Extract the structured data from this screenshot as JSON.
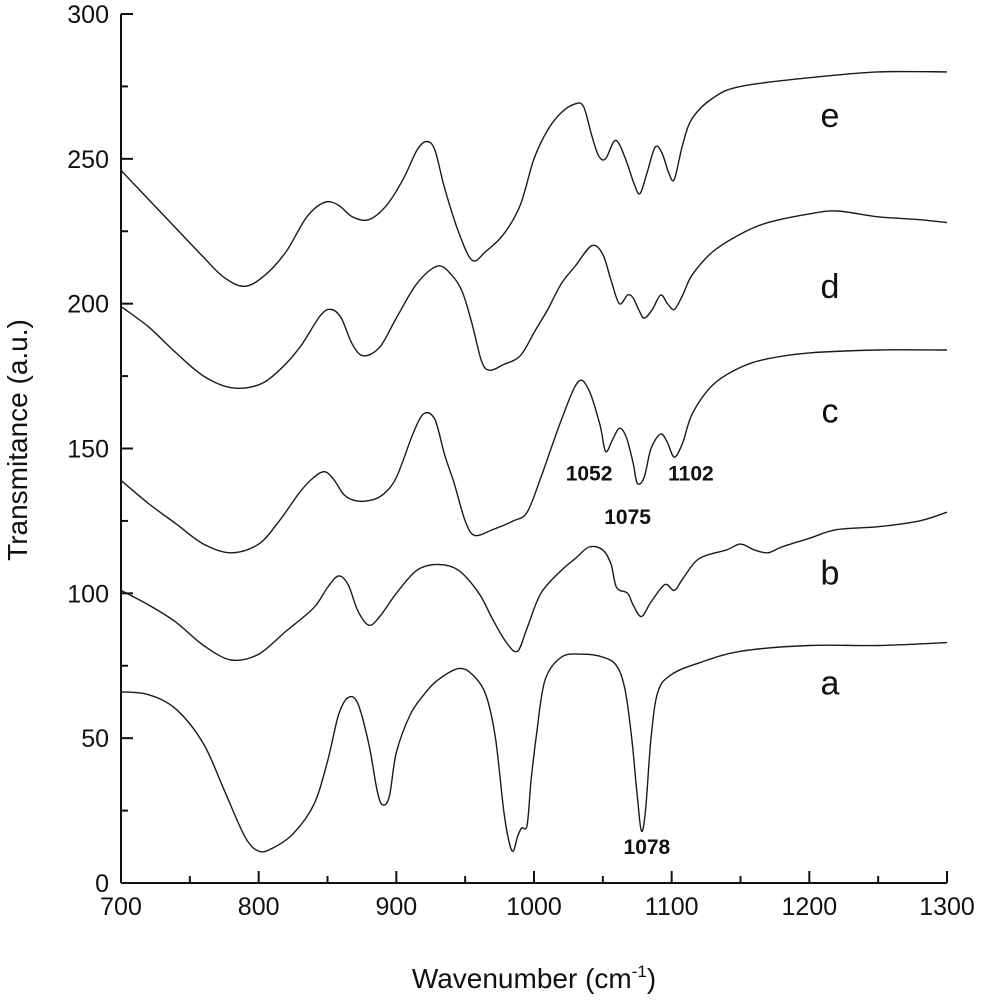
{
  "chart_data": {
    "type": "line",
    "title": "",
    "xlabel": "Wavenumber (cm⁻¹)",
    "xlabel_main": "Wavenumber (cm",
    "xlabel_sup": "-1",
    "xlabel_close": ")",
    "ylabel": "Transmitance (a.u.)",
    "xlim": [
      700,
      1300
    ],
    "ylim": [
      0,
      300
    ],
    "xticks": [
      700,
      800,
      900,
      1000,
      1100,
      1200,
      1300
    ],
    "yticks": [
      0,
      50,
      100,
      150,
      200,
      250,
      300
    ],
    "series": [
      {
        "name": "a",
        "points": [
          [
            700,
            66
          ],
          [
            720,
            65
          ],
          [
            740,
            60
          ],
          [
            760,
            48
          ],
          [
            775,
            32
          ],
          [
            790,
            16
          ],
          [
            800,
            11
          ],
          [
            810,
            12
          ],
          [
            825,
            17
          ],
          [
            840,
            27
          ],
          [
            850,
            42
          ],
          [
            858,
            58
          ],
          [
            865,
            64
          ],
          [
            872,
            62
          ],
          [
            880,
            48
          ],
          [
            886,
            32
          ],
          [
            890,
            27
          ],
          [
            895,
            30
          ],
          [
            900,
            45
          ],
          [
            910,
            58
          ],
          [
            920,
            65
          ],
          [
            930,
            70
          ],
          [
            945,
            74
          ],
          [
            955,
            72
          ],
          [
            965,
            65
          ],
          [
            972,
            50
          ],
          [
            978,
            25
          ],
          [
            982,
            14
          ],
          [
            985,
            11
          ],
          [
            988,
            16
          ],
          [
            991,
            19
          ],
          [
            995,
            20
          ],
          [
            998,
            36
          ],
          [
            1002,
            52
          ],
          [
            1008,
            70
          ],
          [
            1020,
            78
          ],
          [
            1035,
            79
          ],
          [
            1050,
            78
          ],
          [
            1060,
            75
          ],
          [
            1066,
            67
          ],
          [
            1071,
            50
          ],
          [
            1075,
            30
          ],
          [
            1078,
            18
          ],
          [
            1081,
            25
          ],
          [
            1085,
            50
          ],
          [
            1090,
            66
          ],
          [
            1100,
            72
          ],
          [
            1120,
            76
          ],
          [
            1150,
            80
          ],
          [
            1200,
            82
          ],
          [
            1250,
            82
          ],
          [
            1300,
            83
          ]
        ]
      },
      {
        "name": "b",
        "points": [
          [
            700,
            101
          ],
          [
            720,
            96
          ],
          [
            740,
            90
          ],
          [
            760,
            82
          ],
          [
            780,
            77
          ],
          [
            800,
            79
          ],
          [
            820,
            87
          ],
          [
            840,
            95
          ],
          [
            850,
            102
          ],
          [
            858,
            106
          ],
          [
            865,
            103
          ],
          [
            872,
            94
          ],
          [
            880,
            89
          ],
          [
            888,
            92
          ],
          [
            900,
            100
          ],
          [
            915,
            108
          ],
          [
            930,
            110
          ],
          [
            945,
            108
          ],
          [
            960,
            100
          ],
          [
            970,
            91
          ],
          [
            980,
            83
          ],
          [
            988,
            80
          ],
          [
            995,
            88
          ],
          [
            1005,
            100
          ],
          [
            1020,
            108
          ],
          [
            1030,
            112
          ],
          [
            1040,
            116
          ],
          [
            1050,
            115
          ],
          [
            1056,
            110
          ],
          [
            1060,
            102
          ],
          [
            1068,
            100
          ],
          [
            1072,
            96
          ],
          [
            1078,
            92
          ],
          [
            1085,
            97
          ],
          [
            1095,
            103
          ],
          [
            1102,
            101
          ],
          [
            1108,
            105
          ],
          [
            1120,
            112
          ],
          [
            1140,
            115
          ],
          [
            1150,
            117
          ],
          [
            1160,
            115
          ],
          [
            1170,
            114
          ],
          [
            1180,
            116
          ],
          [
            1200,
            119
          ],
          [
            1220,
            122
          ],
          [
            1250,
            123
          ],
          [
            1280,
            125
          ],
          [
            1300,
            128
          ]
        ]
      },
      {
        "name": "c",
        "points": [
          [
            700,
            139
          ],
          [
            720,
            131
          ],
          [
            740,
            124
          ],
          [
            760,
            117
          ],
          [
            780,
            114
          ],
          [
            800,
            117
          ],
          [
            815,
            125
          ],
          [
            830,
            135
          ],
          [
            840,
            140
          ],
          [
            848,
            142
          ],
          [
            855,
            139
          ],
          [
            862,
            134
          ],
          [
            870,
            132
          ],
          [
            880,
            132
          ],
          [
            890,
            134
          ],
          [
            900,
            140
          ],
          [
            912,
            155
          ],
          [
            920,
            162
          ],
          [
            928,
            160
          ],
          [
            935,
            148
          ],
          [
            942,
            138
          ],
          [
            950,
            125
          ],
          [
            957,
            120
          ],
          [
            970,
            122
          ],
          [
            985,
            125
          ],
          [
            995,
            128
          ],
          [
            1005,
            140
          ],
          [
            1020,
            160
          ],
          [
            1032,
            173
          ],
          [
            1040,
            170
          ],
          [
            1048,
            158
          ],
          [
            1052,
            149
          ],
          [
            1057,
            153
          ],
          [
            1062,
            157
          ],
          [
            1067,
            154
          ],
          [
            1072,
            145
          ],
          [
            1075,
            138
          ],
          [
            1080,
            140
          ],
          [
            1085,
            150
          ],
          [
            1092,
            155
          ],
          [
            1097,
            152
          ],
          [
            1102,
            147
          ],
          [
            1108,
            152
          ],
          [
            1115,
            162
          ],
          [
            1130,
            172
          ],
          [
            1150,
            178
          ],
          [
            1170,
            181
          ],
          [
            1200,
            183
          ],
          [
            1250,
            184
          ],
          [
            1300,
            184
          ]
        ]
      },
      {
        "name": "d",
        "points": [
          [
            700,
            199
          ],
          [
            720,
            192
          ],
          [
            740,
            183
          ],
          [
            760,
            175
          ],
          [
            780,
            171
          ],
          [
            800,
            172
          ],
          [
            815,
            177
          ],
          [
            830,
            185
          ],
          [
            845,
            196
          ],
          [
            853,
            198
          ],
          [
            860,
            195
          ],
          [
            868,
            186
          ],
          [
            876,
            182
          ],
          [
            888,
            185
          ],
          [
            900,
            195
          ],
          [
            915,
            207
          ],
          [
            930,
            213
          ],
          [
            940,
            210
          ],
          [
            948,
            204
          ],
          [
            955,
            193
          ],
          [
            962,
            180
          ],
          [
            968,
            177
          ],
          [
            978,
            179
          ],
          [
            990,
            182
          ],
          [
            1000,
            190
          ],
          [
            1005,
            194
          ],
          [
            1010,
            198
          ],
          [
            1020,
            207
          ],
          [
            1030,
            213
          ],
          [
            1042,
            220
          ],
          [
            1050,
            217
          ],
          [
            1056,
            208
          ],
          [
            1062,
            200
          ],
          [
            1068,
            203
          ],
          [
            1072,
            202
          ],
          [
            1076,
            198
          ],
          [
            1080,
            195
          ],
          [
            1086,
            198
          ],
          [
            1092,
            203
          ],
          [
            1097,
            200
          ],
          [
            1102,
            198
          ],
          [
            1108,
            203
          ],
          [
            1115,
            210
          ],
          [
            1130,
            218
          ],
          [
            1150,
            224
          ],
          [
            1170,
            228
          ],
          [
            1200,
            231
          ],
          [
            1220,
            232
          ],
          [
            1250,
            230
          ],
          [
            1280,
            229
          ],
          [
            1300,
            228
          ]
        ]
      },
      {
        "name": "e",
        "points": [
          [
            700,
            246
          ],
          [
            720,
            236
          ],
          [
            740,
            226
          ],
          [
            760,
            216
          ],
          [
            775,
            209
          ],
          [
            790,
            206
          ],
          [
            805,
            210
          ],
          [
            820,
            218
          ],
          [
            835,
            230
          ],
          [
            848,
            235
          ],
          [
            858,
            234
          ],
          [
            868,
            230
          ],
          [
            880,
            229
          ],
          [
            893,
            234
          ],
          [
            905,
            243
          ],
          [
            915,
            253
          ],
          [
            922,
            256
          ],
          [
            928,
            253
          ],
          [
            935,
            240
          ],
          [
            945,
            225
          ],
          [
            955,
            215
          ],
          [
            965,
            218
          ],
          [
            978,
            224
          ],
          [
            990,
            234
          ],
          [
            1000,
            250
          ],
          [
            1010,
            260
          ],
          [
            1020,
            266
          ],
          [
            1030,
            269
          ],
          [
            1036,
            268
          ],
          [
            1042,
            258
          ],
          [
            1047,
            251
          ],
          [
            1052,
            250
          ],
          [
            1058,
            256
          ],
          [
            1062,
            255
          ],
          [
            1068,
            248
          ],
          [
            1073,
            241
          ],
          [
            1077,
            238
          ],
          [
            1082,
            245
          ],
          [
            1088,
            254
          ],
          [
            1093,
            252
          ],
          [
            1098,
            245
          ],
          [
            1102,
            243
          ],
          [
            1108,
            255
          ],
          [
            1115,
            264
          ],
          [
            1130,
            271
          ],
          [
            1150,
            275
          ],
          [
            1200,
            278
          ],
          [
            1250,
            280
          ],
          [
            1300,
            280
          ]
        ]
      }
    ],
    "series_labels": [
      {
        "text": "a",
        "x": 1215,
        "y": 65
      },
      {
        "text": "b",
        "x": 1215,
        "y": 103
      },
      {
        "text": "c",
        "x": 1215,
        "y": 159
      },
      {
        "text": "d",
        "x": 1215,
        "y": 202
      },
      {
        "text": "e",
        "x": 1215,
        "y": 261
      }
    ],
    "annotations": [
      {
        "text": "1052",
        "x": 1040,
        "y": 139
      },
      {
        "text": "1075",
        "x": 1068,
        "y": 124
      },
      {
        "text": "1102",
        "x": 1114,
        "y": 139
      },
      {
        "text": "1078",
        "x": 1082,
        "y": 10
      }
    ]
  }
}
